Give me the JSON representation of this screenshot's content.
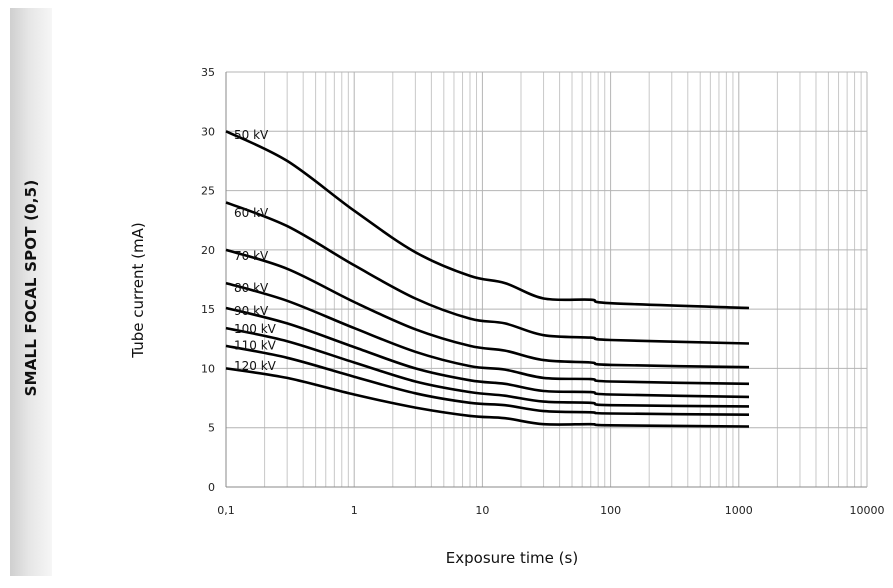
{
  "side_title": "SMALL FOCAL SPOT (0,5)",
  "chart_data": {
    "type": "line",
    "xscale": "log",
    "xlim": [
      0.1,
      10000
    ],
    "ylim": [
      0,
      35
    ],
    "xlabel": "Exposure time (s)",
    "ylabel": "Tube current (mA)",
    "x_ticks": [
      "0,1",
      "1",
      "10",
      "100",
      "1000",
      "10000"
    ],
    "y_ticks": [
      "0",
      "5",
      "10",
      "15",
      "20",
      "25",
      "30",
      "35"
    ],
    "grid": true,
    "line_color": "#000000",
    "grid_color": "#c8c8c8",
    "series": [
      {
        "name": "50 kV",
        "x": [
          0.1,
          0.3,
          1,
          3,
          8,
          15,
          30,
          70,
          100,
          1200
        ],
        "y": [
          30,
          27.5,
          23.3,
          19.8,
          17.8,
          17.2,
          15.9,
          15.8,
          15.5,
          15.1
        ]
      },
      {
        "name": "60 kV",
        "x": [
          0.1,
          0.3,
          1,
          3,
          8,
          15,
          30,
          70,
          100,
          1200
        ],
        "y": [
          24,
          22,
          18.7,
          15.9,
          14.2,
          13.8,
          12.8,
          12.6,
          12.4,
          12.1
        ]
      },
      {
        "name": "70 kV",
        "x": [
          0.1,
          0.3,
          1,
          3,
          8,
          15,
          30,
          70,
          100,
          1200
        ],
        "y": [
          20,
          18.4,
          15.6,
          13.3,
          11.9,
          11.5,
          10.7,
          10.5,
          10.3,
          10.1
        ]
      },
      {
        "name": "80 kV",
        "x": [
          0.1,
          0.3,
          1,
          3,
          8,
          15,
          30,
          70,
          100,
          1200
        ],
        "y": [
          17.2,
          15.7,
          13.4,
          11.4,
          10.2,
          9.9,
          9.2,
          9.1,
          8.9,
          8.7
        ]
      },
      {
        "name": "90 kV",
        "x": [
          0.1,
          0.3,
          1,
          3,
          8,
          15,
          30,
          70,
          100,
          1200
        ],
        "y": [
          15.1,
          13.8,
          11.8,
          10.0,
          9.0,
          8.7,
          8.1,
          8.0,
          7.8,
          7.6
        ]
      },
      {
        "name": "100 kV",
        "x": [
          0.1,
          0.3,
          1,
          3,
          8,
          15,
          30,
          70,
          100,
          1200
        ],
        "y": [
          13.4,
          12.3,
          10.5,
          8.9,
          8.0,
          7.7,
          7.2,
          7.1,
          6.9,
          6.8
        ]
      },
      {
        "name": "110 kV",
        "x": [
          0.1,
          0.3,
          1,
          3,
          8,
          15,
          30,
          70,
          100,
          1200
        ],
        "y": [
          11.9,
          10.9,
          9.3,
          7.9,
          7.1,
          6.9,
          6.4,
          6.3,
          6.2,
          6.1
        ]
      },
      {
        "name": "120 kV",
        "x": [
          0.1,
          0.3,
          1,
          3,
          8,
          15,
          30,
          70,
          100,
          1200
        ],
        "y": [
          10.0,
          9.2,
          7.8,
          6.7,
          6.0,
          5.8,
          5.3,
          5.3,
          5.2,
          5.1
        ]
      }
    ]
  }
}
